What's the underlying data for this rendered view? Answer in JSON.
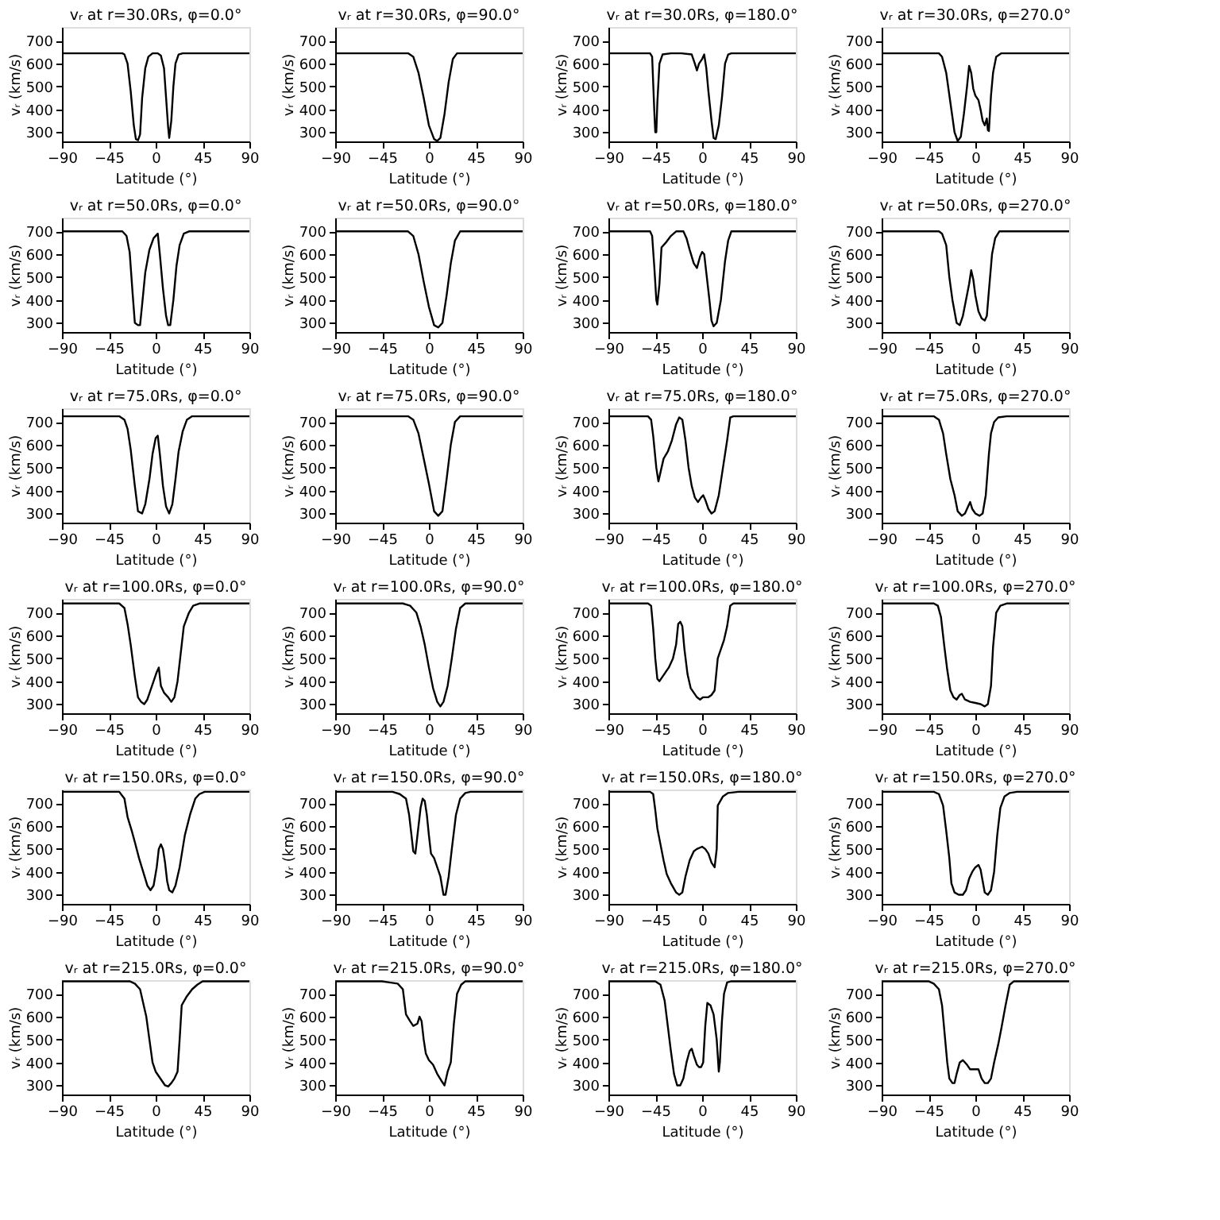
{
  "chart_data": [
    {
      "type": "line",
      "title": "vᵣ at r=30.0Rs, φ=0.0°",
      "xlabel": "Latitude (°)",
      "ylabel": "vᵣ (km/s)",
      "xlim": [
        -90,
        90
      ],
      "xticks": [
        -90,
        -45,
        0,
        45,
        90
      ],
      "ylim": [
        260,
        760
      ],
      "yticks": [
        300,
        400,
        500,
        600,
        700
      ],
      "grid": false,
      "legend": false,
      "line_style": "solid",
      "marker": "none",
      "series": [
        {
          "color": "#000000",
          "x": [
            -90,
            -32,
            -30,
            -27,
            -24,
            -21,
            -19,
            -17,
            -15,
            -13,
            -10,
            -7,
            -3,
            2,
            5,
            8,
            10,
            12,
            13,
            15,
            17,
            19,
            22,
            26,
            90
          ],
          "values": [
            645,
            645,
            640,
            600,
            480,
            330,
            270,
            265,
            290,
            450,
            580,
            630,
            645,
            645,
            635,
            580,
            450,
            320,
            275,
            350,
            500,
            600,
            640,
            645,
            645
          ]
        }
      ]
    },
    {
      "type": "line",
      "title": "vᵣ at r=30.0Rs, φ=90.0°",
      "xlabel": "Latitude (°)",
      "ylabel": "vᵣ (km/s)",
      "xlim": [
        -90,
        90
      ],
      "xticks": [
        -90,
        -45,
        0,
        45,
        90
      ],
      "ylim": [
        260,
        760
      ],
      "yticks": [
        300,
        400,
        500,
        600,
        700
      ],
      "grid": false,
      "legend": false,
      "line_style": "solid",
      "marker": "none",
      "series": [
        {
          "color": "#000000",
          "x": [
            -90,
            -20,
            -15,
            -10,
            -5,
            0,
            5,
            8,
            11,
            15,
            19,
            23,
            27,
            90
          ],
          "values": [
            645,
            645,
            630,
            560,
            450,
            330,
            270,
            262,
            275,
            380,
            520,
            620,
            645,
            645
          ]
        }
      ]
    },
    {
      "type": "line",
      "title": "vᵣ at r=30.0Rs, φ=180.0°",
      "xlabel": "Latitude (°)",
      "ylabel": "vᵣ (km/s)",
      "xlim": [
        -90,
        90
      ],
      "xticks": [
        -90,
        -45,
        0,
        45,
        90
      ],
      "ylim": [
        260,
        760
      ],
      "yticks": [
        300,
        400,
        500,
        600,
        700
      ],
      "grid": false,
      "legend": false,
      "line_style": "solid",
      "marker": "none",
      "series": [
        {
          "color": "#000000",
          "x": [
            -90,
            -50,
            -48,
            -46,
            -45,
            -44,
            -43,
            -41,
            -38,
            -30,
            -20,
            -10,
            -7,
            -5,
            -3,
            0,
            2,
            4,
            6,
            9,
            11,
            13,
            16,
            19,
            22,
            25,
            28,
            90
          ],
          "values": [
            645,
            645,
            630,
            400,
            300,
            300,
            430,
            600,
            640,
            645,
            645,
            640,
            600,
            570,
            600,
            620,
            640,
            580,
            480,
            350,
            275,
            270,
            330,
            450,
            600,
            640,
            645,
            645
          ]
        }
      ]
    },
    {
      "type": "line",
      "title": "vᵣ at r=30.0Rs, φ=270.0°",
      "xlabel": "Latitude (°)",
      "ylabel": "vᵣ (km/s)",
      "xlim": [
        -90,
        90
      ],
      "xticks": [
        -90,
        -45,
        0,
        45,
        90
      ],
      "ylim": [
        260,
        760
      ],
      "yticks": [
        300,
        400,
        500,
        600,
        700
      ],
      "grid": false,
      "legend": false,
      "line_style": "solid",
      "marker": "none",
      "series": [
        {
          "color": "#000000",
          "x": [
            -90,
            -35,
            -32,
            -28,
            -24,
            -20,
            -17,
            -14,
            -11,
            -8,
            -6,
            -4,
            -2,
            0,
            3,
            5,
            7,
            9,
            11,
            12,
            13,
            15,
            17,
            20,
            25,
            90
          ],
          "values": [
            645,
            645,
            630,
            560,
            430,
            300,
            262,
            280,
            380,
            500,
            590,
            560,
            490,
            460,
            440,
            400,
            350,
            330,
            360,
            310,
            305,
            460,
            560,
            630,
            645,
            645
          ]
        }
      ]
    },
    {
      "type": "line",
      "title": "vᵣ at r=50.0Rs, φ=0.0°",
      "xlabel": "Latitude (°)",
      "ylabel": "vᵣ (km/s)",
      "xlim": [
        -90,
        90
      ],
      "xticks": [
        -90,
        -45,
        0,
        45,
        90
      ],
      "ylim": [
        260,
        760
      ],
      "yticks": [
        300,
        400,
        500,
        600,
        700
      ],
      "grid": false,
      "legend": false,
      "line_style": "solid",
      "marker": "none",
      "series": [
        {
          "color": "#000000",
          "x": [
            -90,
            -32,
            -28,
            -25,
            -22,
            -20,
            -17,
            -15,
            -13,
            -10,
            -6,
            -2,
            2,
            4,
            7,
            10,
            12,
            14,
            17,
            20,
            23,
            27,
            32,
            90
          ],
          "values": [
            700,
            700,
            680,
            610,
            420,
            300,
            290,
            290,
            380,
            520,
            620,
            670,
            690,
            600,
            450,
            330,
            290,
            290,
            400,
            550,
            640,
            690,
            700,
            700
          ]
        }
      ]
    },
    {
      "type": "line",
      "title": "vᵣ at r=50.0Rs, φ=90.0°",
      "xlabel": "Latitude (°)",
      "ylabel": "vᵣ (km/s)",
      "xlim": [
        -90,
        90
      ],
      "xticks": [
        -90,
        -45,
        0,
        45,
        90
      ],
      "ylim": [
        260,
        760
      ],
      "yticks": [
        300,
        400,
        500,
        600,
        700
      ],
      "grid": false,
      "legend": false,
      "line_style": "solid",
      "marker": "none",
      "series": [
        {
          "color": "#000000",
          "x": [
            -90,
            -20,
            -15,
            -10,
            -5,
            0,
            5,
            9,
            13,
            17,
            21,
            25,
            30,
            90
          ],
          "values": [
            700,
            700,
            680,
            600,
            480,
            370,
            290,
            280,
            300,
            420,
            560,
            660,
            700,
            700
          ]
        }
      ]
    },
    {
      "type": "line",
      "title": "vᵣ at r=50.0Rs, φ=180.0°",
      "xlabel": "Latitude (°)",
      "ylabel": "vᵣ (km/s)",
      "xlim": [
        -90,
        90
      ],
      "xticks": [
        -90,
        -45,
        0,
        45,
        90
      ],
      "ylim": [
        260,
        760
      ],
      "yticks": [
        300,
        400,
        500,
        600,
        700
      ],
      "grid": false,
      "legend": false,
      "line_style": "solid",
      "marker": "none",
      "series": [
        {
          "color": "#000000",
          "x": [
            -90,
            -50,
            -48,
            -46,
            -44,
            -43,
            -41,
            -39,
            -35,
            -30,
            -25,
            -18,
            -15,
            -12,
            -8,
            -5,
            -2,
            0,
            2,
            4,
            7,
            9,
            11,
            14,
            18,
            22,
            25,
            28,
            90
          ],
          "values": [
            700,
            700,
            680,
            550,
            400,
            380,
            470,
            630,
            650,
            680,
            700,
            700,
            670,
            620,
            560,
            540,
            590,
            610,
            600,
            520,
            400,
            310,
            285,
            300,
            400,
            570,
            660,
            700,
            700
          ]
        }
      ]
    },
    {
      "type": "line",
      "title": "vᵣ at r=50.0Rs, φ=270.0°",
      "xlabel": "Latitude (°)",
      "ylabel": "vᵣ (km/s)",
      "xlim": [
        -90,
        90
      ],
      "xticks": [
        -90,
        -45,
        0,
        45,
        90
      ],
      "ylim": [
        260,
        760
      ],
      "yticks": [
        300,
        400,
        500,
        600,
        700
      ],
      "grid": false,
      "legend": false,
      "line_style": "solid",
      "marker": "none",
      "series": [
        {
          "color": "#000000",
          "x": [
            -90,
            -35,
            -32,
            -28,
            -25,
            -22,
            -18,
            -15,
            -12,
            -9,
            -6,
            -4,
            -2,
            0,
            3,
            6,
            9,
            11,
            13,
            16,
            19,
            23,
            90
          ],
          "values": [
            700,
            700,
            690,
            640,
            500,
            400,
            300,
            290,
            330,
            400,
            470,
            530,
            490,
            420,
            350,
            320,
            310,
            330,
            440,
            600,
            670,
            700,
            700
          ]
        }
      ]
    },
    {
      "type": "line",
      "title": "vᵣ at r=75.0Rs, φ=0.0°",
      "xlabel": "Latitude (°)",
      "ylabel": "vᵣ (km/s)",
      "xlim": [
        -90,
        90
      ],
      "xticks": [
        -90,
        -45,
        0,
        45,
        90
      ],
      "ylim": [
        260,
        760
      ],
      "yticks": [
        300,
        400,
        500,
        600,
        700
      ],
      "grid": false,
      "legend": false,
      "line_style": "solid",
      "marker": "none",
      "series": [
        {
          "color": "#000000",
          "x": [
            -90,
            -35,
            -30,
            -27,
            -24,
            -20,
            -17,
            -13,
            -10,
            -6,
            -3,
            0,
            2,
            4,
            7,
            10,
            13,
            16,
            19,
            22,
            26,
            30,
            35,
            90
          ],
          "values": [
            725,
            725,
            710,
            670,
            580,
            420,
            310,
            300,
            340,
            450,
            560,
            630,
            640,
            560,
            420,
            330,
            300,
            340,
            450,
            570,
            660,
            710,
            725,
            725
          ]
        }
      ]
    },
    {
      "type": "line",
      "title": "vᵣ at r=75.0Rs, φ=90.0°",
      "xlabel": "Latitude (°)",
      "ylabel": "vᵣ (km/s)",
      "xlim": [
        -90,
        90
      ],
      "xticks": [
        -90,
        -45,
        0,
        45,
        90
      ],
      "ylim": [
        260,
        760
      ],
      "yticks": [
        300,
        400,
        500,
        600,
        700
      ],
      "grid": false,
      "legend": false,
      "line_style": "solid",
      "marker": "none",
      "series": [
        {
          "color": "#000000",
          "x": [
            -90,
            -20,
            -15,
            -10,
            -5,
            0,
            5,
            9,
            13,
            17,
            21,
            25,
            30,
            90
          ],
          "values": [
            725,
            725,
            710,
            650,
            540,
            430,
            310,
            290,
            310,
            450,
            600,
            700,
            725,
            725
          ]
        }
      ]
    },
    {
      "type": "line",
      "title": "vᵣ at r=75.0Rs, φ=180.0°",
      "xlabel": "Latitude (°)",
      "ylabel": "vᵣ (km/s)",
      "xlim": [
        -90,
        90
      ],
      "xticks": [
        -90,
        -45,
        0,
        45,
        90
      ],
      "ylim": [
        260,
        760
      ],
      "yticks": [
        300,
        400,
        500,
        600,
        700
      ],
      "grid": false,
      "legend": false,
      "line_style": "solid",
      "marker": "none",
      "series": [
        {
          "color": "#000000",
          "x": [
            -90,
            -52,
            -49,
            -47,
            -44,
            -42,
            -40,
            -37,
            -33,
            -29,
            -25,
            -22,
            -19,
            -16,
            -13,
            -10,
            -7,
            -4,
            -1,
            1,
            3,
            6,
            9,
            12,
            16,
            20,
            24,
            27,
            30,
            90
          ],
          "values": [
            725,
            725,
            710,
            640,
            500,
            440,
            480,
            540,
            570,
            620,
            690,
            720,
            710,
            620,
            500,
            420,
            370,
            350,
            370,
            380,
            360,
            320,
            300,
            310,
            380,
            500,
            620,
            720,
            725,
            725
          ]
        }
      ]
    },
    {
      "type": "line",
      "title": "vᵣ at r=75.0Rs, φ=270.0°",
      "xlabel": "Latitude (°)",
      "ylabel": "vᵣ (km/s)",
      "xlim": [
        -90,
        90
      ],
      "xticks": [
        -90,
        -45,
        0,
        45,
        90
      ],
      "ylim": [
        260,
        760
      ],
      "yticks": [
        300,
        400,
        500,
        600,
        700
      ],
      "grid": false,
      "legend": false,
      "line_style": "solid",
      "marker": "none",
      "series": [
        {
          "color": "#000000",
          "x": [
            -90,
            -40,
            -35,
            -31,
            -28,
            -24,
            -20,
            -17,
            -13,
            -10,
            -7,
            -5,
            -3,
            0,
            4,
            7,
            10,
            13,
            15,
            18,
            22,
            30,
            90
          ],
          "values": [
            725,
            725,
            710,
            650,
            560,
            450,
            380,
            310,
            290,
            300,
            330,
            350,
            320,
            300,
            290,
            300,
            380,
            560,
            650,
            700,
            720,
            725,
            725
          ]
        }
      ]
    },
    {
      "type": "line",
      "title": "vᵣ at r=100.0Rs, φ=0.0°",
      "xlabel": "Latitude (°)",
      "ylabel": "vᵣ (km/s)",
      "xlim": [
        -90,
        90
      ],
      "xticks": [
        -90,
        -45,
        0,
        45,
        90
      ],
      "ylim": [
        260,
        760
      ],
      "yticks": [
        300,
        400,
        500,
        600,
        700
      ],
      "grid": false,
      "legend": false,
      "line_style": "solid",
      "marker": "none",
      "series": [
        {
          "color": "#000000",
          "x": [
            -90,
            -35,
            -30,
            -27,
            -24,
            -20,
            -17,
            -14,
            -11,
            -8,
            -5,
            -2,
            1,
            3,
            5,
            8,
            12,
            15,
            18,
            21,
            24,
            27,
            32,
            36,
            42,
            90
          ],
          "values": [
            740,
            740,
            720,
            650,
            560,
            420,
            330,
            310,
            300,
            320,
            360,
            400,
            440,
            460,
            380,
            350,
            330,
            310,
            330,
            400,
            520,
            640,
            700,
            730,
            740,
            740
          ]
        }
      ]
    },
    {
      "type": "line",
      "title": "vᵣ at r=100.0Rs, φ=90.0°",
      "xlabel": "Latitude (°)",
      "ylabel": "vᵣ (km/s)",
      "xlim": [
        -90,
        90
      ],
      "xticks": [
        -90,
        -45,
        0,
        45,
        90
      ],
      "ylim": [
        260,
        760
      ],
      "yticks": [
        300,
        400,
        500,
        600,
        700
      ],
      "grid": false,
      "legend": false,
      "line_style": "solid",
      "marker": "none",
      "series": [
        {
          "color": "#000000",
          "x": [
            -90,
            -25,
            -18,
            -12,
            -8,
            -4,
            0,
            4,
            8,
            11,
            14,
            18,
            22,
            26,
            30,
            35,
            90
          ],
          "values": [
            740,
            740,
            730,
            700,
            640,
            560,
            460,
            370,
            310,
            290,
            310,
            380,
            500,
            630,
            720,
            740,
            740
          ]
        }
      ]
    },
    {
      "type": "line",
      "title": "vᵣ at r=100.0Rs, φ=180.0°",
      "xlabel": "Latitude (°)",
      "ylabel": "vᵣ (km/s)",
      "xlim": [
        -90,
        90
      ],
      "xticks": [
        -90,
        -45,
        0,
        45,
        90
      ],
      "ylim": [
        260,
        760
      ],
      "yticks": [
        300,
        400,
        500,
        600,
        700
      ],
      "grid": false,
      "legend": false,
      "line_style": "solid",
      "marker": "none",
      "series": [
        {
          "color": "#000000",
          "x": [
            -90,
            -52,
            -49,
            -47,
            -45,
            -43,
            -41,
            -38,
            -35,
            -32,
            -28,
            -25,
            -23,
            -21,
            -19,
            -17,
            -14,
            -11,
            -8,
            -5,
            -2,
            1,
            3,
            6,
            9,
            12,
            15,
            18,
            21,
            24,
            27,
            30,
            90
          ],
          "values": [
            740,
            740,
            730,
            630,
            500,
            410,
            400,
            420,
            440,
            460,
            500,
            560,
            650,
            660,
            640,
            540,
            430,
            370,
            350,
            330,
            320,
            330,
            330,
            330,
            340,
            360,
            500,
            540,
            580,
            640,
            730,
            740,
            740
          ]
        }
      ]
    },
    {
      "type": "line",
      "title": "vᵣ at r=100.0Rs, φ=270.0°",
      "xlabel": "Latitude (°)",
      "ylabel": "vᵣ (km/s)",
      "xlim": [
        -90,
        90
      ],
      "xticks": [
        -90,
        -45,
        0,
        45,
        90
      ],
      "ylim": [
        260,
        760
      ],
      "yticks": [
        300,
        400,
        500,
        600,
        700
      ],
      "grid": false,
      "legend": false,
      "line_style": "solid",
      "marker": "none",
      "series": [
        {
          "color": "#000000",
          "x": [
            -90,
            -40,
            -36,
            -33,
            -30,
            -27,
            -24,
            -21,
            -18,
            -15,
            -13,
            -10,
            -5,
            0,
            5,
            9,
            12,
            15,
            17,
            20,
            24,
            30,
            90
          ],
          "values": [
            740,
            740,
            730,
            680,
            560,
            450,
            360,
            330,
            320,
            340,
            345,
            320,
            310,
            305,
            300,
            290,
            300,
            380,
            550,
            700,
            730,
            740,
            740
          ]
        }
      ]
    },
    {
      "type": "line",
      "title": "vᵣ at r=150.0Rs, φ=0.0°",
      "xlabel": "Latitude (°)",
      "ylabel": "vᵣ (km/s)",
      "xlim": [
        -90,
        90
      ],
      "xticks": [
        -90,
        -45,
        0,
        45,
        90
      ],
      "ylim": [
        260,
        760
      ],
      "yticks": [
        300,
        400,
        500,
        600,
        700
      ],
      "grid": false,
      "legend": false,
      "line_style": "solid",
      "marker": "none",
      "series": [
        {
          "color": "#000000",
          "x": [
            -90,
            -35,
            -30,
            -27,
            -23,
            -20,
            -16,
            -12,
            -8,
            -5,
            -2,
            1,
            3,
            5,
            7,
            9,
            11,
            13,
            16,
            19,
            23,
            28,
            33,
            38,
            42,
            47,
            90
          ],
          "values": [
            750,
            750,
            720,
            640,
            580,
            530,
            460,
            400,
            340,
            320,
            340,
            420,
            500,
            520,
            500,
            440,
            360,
            320,
            310,
            340,
            420,
            560,
            650,
            720,
            740,
            750,
            750
          ]
        }
      ]
    },
    {
      "type": "line",
      "title": "vᵣ at r=150.0Rs, φ=90.0°",
      "xlabel": "Latitude (°)",
      "ylabel": "vᵣ (km/s)",
      "xlim": [
        -90,
        90
      ],
      "xticks": [
        -90,
        -45,
        0,
        45,
        90
      ],
      "ylim": [
        260,
        760
      ],
      "yticks": [
        300,
        400,
        500,
        600,
        700
      ],
      "grid": false,
      "legend": false,
      "line_style": "solid",
      "marker": "none",
      "series": [
        {
          "color": "#000000",
          "x": [
            -90,
            -35,
            -28,
            -22,
            -19,
            -17,
            -15,
            -13,
            -11,
            -8,
            -6,
            -4,
            -2,
            0,
            2,
            5,
            8,
            11,
            14,
            16,
            19,
            22,
            26,
            30,
            35,
            40,
            90
          ],
          "values": [
            750,
            750,
            740,
            720,
            650,
            570,
            490,
            480,
            560,
            680,
            720,
            710,
            650,
            560,
            480,
            460,
            420,
            380,
            300,
            300,
            380,
            500,
            650,
            720,
            745,
            750,
            750
          ]
        }
      ]
    },
    {
      "type": "line",
      "title": "vᵣ at r=150.0Rs, φ=180.0°",
      "xlabel": "Latitude (°)",
      "ylabel": "vᵣ (km/s)",
      "xlim": [
        -90,
        90
      ],
      "xticks": [
        -90,
        -45,
        0,
        45,
        90
      ],
      "ylim": [
        260,
        760
      ],
      "yticks": [
        300,
        400,
        500,
        600,
        700
      ],
      "grid": false,
      "legend": false,
      "line_style": "solid",
      "marker": "none",
      "series": [
        {
          "color": "#000000",
          "x": [
            -90,
            -50,
            -47,
            -45,
            -43,
            -40,
            -37,
            -34,
            -30,
            -25,
            -22,
            -19,
            -16,
            -12,
            -8,
            -5,
            0,
            3,
            6,
            9,
            12,
            14,
            15,
            20,
            25,
            35,
            90
          ],
          "values": [
            750,
            750,
            740,
            670,
            590,
            520,
            450,
            390,
            350,
            310,
            300,
            310,
            380,
            450,
            490,
            500,
            510,
            500,
            480,
            440,
            420,
            500,
            690,
            730,
            745,
            750,
            750
          ]
        }
      ]
    },
    {
      "type": "line",
      "title": "vᵣ at r=150.0Rs, φ=270.0°",
      "xlabel": "Latitude (°)",
      "ylabel": "vᵣ (km/s)",
      "xlim": [
        -90,
        90
      ],
      "xticks": [
        -90,
        -45,
        0,
        45,
        90
      ],
      "ylim": [
        260,
        760
      ],
      "yticks": [
        300,
        400,
        500,
        600,
        700
      ],
      "grid": false,
      "legend": false,
      "line_style": "solid",
      "marker": "none",
      "series": [
        {
          "color": "#000000",
          "x": [
            -90,
            -40,
            -35,
            -31,
            -28,
            -25,
            -23,
            -20,
            -16,
            -12,
            -9,
            -6,
            -3,
            0,
            3,
            5,
            7,
            9,
            12,
            15,
            18,
            21,
            24,
            28,
            33,
            40,
            90
          ],
          "values": [
            750,
            750,
            740,
            690,
            580,
            460,
            350,
            310,
            300,
            300,
            320,
            370,
            400,
            420,
            430,
            410,
            360,
            310,
            300,
            320,
            400,
            560,
            680,
            730,
            745,
            750,
            750
          ]
        }
      ]
    },
    {
      "type": "line",
      "title": "vᵣ at r=215.0Rs, φ=0.0°",
      "xlabel": "Latitude (°)",
      "ylabel": "vᵣ (km/s)",
      "xlim": [
        -90,
        90
      ],
      "xticks": [
        -90,
        -45,
        0,
        45,
        90
      ],
      "ylim": [
        260,
        760
      ],
      "yticks": [
        300,
        400,
        500,
        600,
        700
      ],
      "grid": false,
      "legend": false,
      "line_style": "solid",
      "marker": "none",
      "series": [
        {
          "color": "#000000",
          "x": [
            -90,
            -25,
            -20,
            -15,
            -12,
            -9,
            -6,
            -3,
            0,
            3,
            6,
            9,
            12,
            15,
            18,
            21,
            23,
            25,
            30,
            35,
            40,
            45,
            90
          ],
          "values": [
            755,
            755,
            745,
            720,
            660,
            600,
            500,
            400,
            360,
            340,
            320,
            300,
            295,
            310,
            330,
            360,
            500,
            650,
            690,
            720,
            740,
            755,
            755
          ]
        }
      ]
    },
    {
      "type": "line",
      "title": "vᵣ at r=215.0Rs, φ=90.0°",
      "xlabel": "Latitude (°)",
      "ylabel": "vᵣ (km/s)",
      "xlim": [
        -90,
        90
      ],
      "xticks": [
        -90,
        -45,
        0,
        45,
        90
      ],
      "ylim": [
        260,
        760
      ],
      "yticks": [
        300,
        400,
        500,
        600,
        700
      ],
      "grid": false,
      "legend": false,
      "line_style": "solid",
      "marker": "none",
      "series": [
        {
          "color": "#000000",
          "x": [
            -90,
            -45,
            -38,
            -30,
            -25,
            -22,
            -18,
            -15,
            -11,
            -9,
            -7,
            -5,
            -3,
            0,
            4,
            8,
            12,
            15,
            18,
            21,
            24,
            27,
            31,
            35,
            90
          ],
          "values": [
            755,
            755,
            750,
            745,
            720,
            610,
            580,
            560,
            570,
            600,
            580,
            500,
            440,
            410,
            390,
            350,
            320,
            300,
            360,
            400,
            570,
            700,
            740,
            755,
            755
          ]
        }
      ]
    },
    {
      "type": "line",
      "title": "vᵣ at r=215.0Rs, φ=180.0°",
      "xlabel": "Latitude (°)",
      "ylabel": "vᵣ (km/s)",
      "xlim": [
        -90,
        90
      ],
      "xticks": [
        -90,
        -45,
        0,
        45,
        90
      ],
      "ylim": [
        260,
        760
      ],
      "yticks": [
        300,
        400,
        500,
        600,
        700
      ],
      "grid": false,
      "legend": false,
      "line_style": "solid",
      "marker": "none",
      "series": [
        {
          "color": "#000000",
          "x": [
            -90,
            -45,
            -40,
            -36,
            -33,
            -30,
            -27,
            -24,
            -21,
            -18,
            -15,
            -12,
            -10,
            -8,
            -5,
            -3,
            -1,
            1,
            3,
            5,
            8,
            11,
            14,
            16,
            17,
            19,
            21,
            24,
            28,
            90
          ],
          "values": [
            755,
            755,
            740,
            670,
            560,
            450,
            350,
            300,
            300,
            330,
            400,
            450,
            460,
            430,
            390,
            380,
            380,
            400,
            560,
            660,
            650,
            610,
            500,
            360,
            400,
            580,
            700,
            750,
            755,
            755
          ]
        }
      ]
    },
    {
      "type": "line",
      "title": "vᵣ at r=215.0Rs, φ=270.0°",
      "xlabel": "Latitude (°)",
      "ylabel": "vᵣ (km/s)",
      "xlim": [
        -90,
        90
      ],
      "xticks": [
        -90,
        -45,
        0,
        45,
        90
      ],
      "ylim": [
        260,
        760
      ],
      "yticks": [
        300,
        400,
        500,
        600,
        700
      ],
      "grid": false,
      "legend": false,
      "line_style": "solid",
      "marker": "none",
      "series": [
        {
          "color": "#000000",
          "x": [
            -90,
            -45,
            -40,
            -35,
            -32,
            -29,
            -27,
            -25,
            -22,
            -20,
            -18,
            -15,
            -12,
            -8,
            -5,
            0,
            3,
            6,
            9,
            12,
            15,
            18,
            22,
            25,
            29,
            33,
            37,
            90
          ],
          "values": [
            755,
            755,
            745,
            720,
            650,
            500,
            400,
            330,
            310,
            310,
            350,
            400,
            410,
            390,
            370,
            370,
            370,
            330,
            310,
            310,
            330,
            400,
            480,
            550,
            650,
            740,
            755,
            755
          ]
        }
      ]
    }
  ]
}
